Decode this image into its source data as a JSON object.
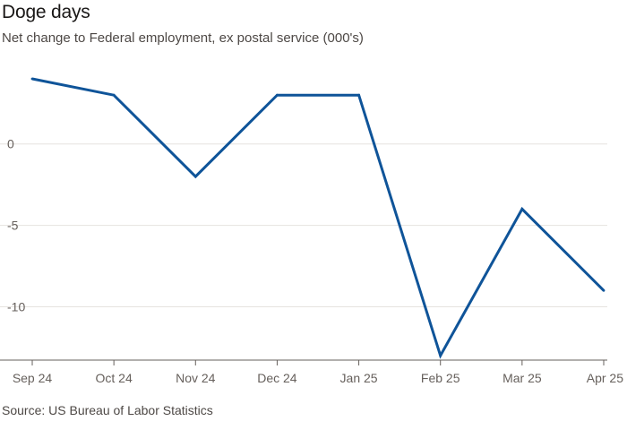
{
  "header": {
    "title": "Doge days",
    "subtitle": "Net change to Federal employment, ex postal service (000's)"
  },
  "footer": {
    "source": "Source: US Bureau of Labor Statistics"
  },
  "chart_data": {
    "type": "line",
    "title": "Doge days",
    "subtitle": "Net change to Federal employment, ex postal service (000's)",
    "xlabel": "",
    "ylabel": "",
    "categories": [
      "Sep 24",
      "Oct 24",
      "Nov 24",
      "Dec 24",
      "Jan 25",
      "Feb 25",
      "Mar 25",
      "Apr 25"
    ],
    "series": [
      {
        "values": [
          4,
          3,
          -2,
          3,
          3,
          -13,
          -4,
          -9
        ],
        "color": "#0f5499"
      }
    ],
    "yticks": [
      0,
      -5,
      -10
    ],
    "ytick_labels": [
      "0",
      "-5",
      "-10"
    ],
    "ylim": [
      -13,
      4
    ],
    "grid": true,
    "gridline_color": "#e6e3df",
    "axis_color": "#66605c",
    "legend": "none"
  }
}
